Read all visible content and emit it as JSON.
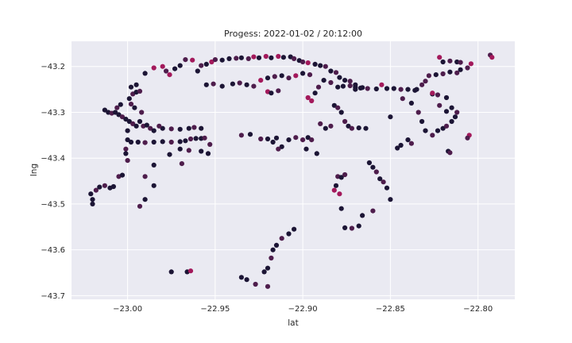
{
  "chart_data": {
    "type": "scatter",
    "title": "Progess: 2022-01-02 / 20:12:00",
    "xlabel": "lat",
    "ylabel": "lng",
    "xlim": [
      -23.032,
      -22.779
    ],
    "ylim": [
      -43.708,
      -43.145
    ],
    "xticks": [
      -23.0,
      -22.95,
      -22.9,
      -22.85,
      -22.8
    ],
    "xtick_labels": [
      "−23.00",
      "−22.95",
      "−22.90",
      "−22.85",
      "−22.80"
    ],
    "yticks": [
      -43.2,
      -43.3,
      -43.4,
      -43.5,
      -43.6,
      -43.7
    ],
    "ytick_labels": [
      "−43.2",
      "−43.3",
      "−43.4",
      "−43.5",
      "−43.6",
      "−43.7"
    ],
    "grid": true,
    "legend": "none",
    "colors": {
      "background": "#eaeaf2",
      "dark": "#1c1535",
      "mid": "#4e1d4c",
      "mid2": "#6e1f57",
      "bright": "#a3195b"
    },
    "points": [
      [
        -23.021,
        -43.478,
        0
      ],
      [
        -23.02,
        -43.49,
        0
      ],
      [
        -23.02,
        -43.5,
        0
      ],
      [
        -23.018,
        -43.47,
        1
      ],
      [
        -23.016,
        -43.463,
        0
      ],
      [
        -23.013,
        -43.46,
        1
      ],
      [
        -23.01,
        -43.465,
        0
      ],
      [
        -23.008,
        -43.462,
        0
      ],
      [
        -23.005,
        -43.44,
        1
      ],
      [
        -23.003,
        -43.437,
        0
      ],
      [
        -23.013,
        -43.295,
        0
      ],
      [
        -23.011,
        -43.3,
        0
      ],
      [
        -23.009,
        -43.302,
        1
      ],
      [
        -23.007,
        -43.3,
        0
      ],
      [
        -23.005,
        -43.305,
        0
      ],
      [
        -23.003,
        -43.31,
        1
      ],
      [
        -23.001,
        -43.315,
        0
      ],
      [
        -22.999,
        -43.32,
        0
      ],
      [
        -22.997,
        -43.325,
        1
      ],
      [
        -22.995,
        -43.33,
        0
      ],
      [
        -22.993,
        -43.32,
        0
      ],
      [
        -22.991,
        -43.33,
        1
      ],
      [
        -22.989,
        -43.328,
        0
      ],
      [
        -22.987,
        -43.335,
        1
      ],
      [
        -22.985,
        -43.34,
        0
      ],
      [
        -23.006,
        -43.29,
        1
      ],
      [
        -23.004,
        -43.283,
        0
      ],
      [
        -22.998,
        -43.282,
        1
      ],
      [
        -22.996,
        -43.29,
        0
      ],
      [
        -22.992,
        -43.3,
        1
      ],
      [
        -23.0,
        -43.34,
        0
      ],
      [
        -23.0,
        -43.36,
        0
      ],
      [
        -23.001,
        -43.38,
        1
      ],
      [
        -23.001,
        -43.39,
        0
      ],
      [
        -23.0,
        -43.405,
        1
      ],
      [
        -22.998,
        -43.365,
        0
      ],
      [
        -22.994,
        -43.365,
        0
      ],
      [
        -22.99,
        -43.366,
        1
      ],
      [
        -22.985,
        -43.365,
        0
      ],
      [
        -22.98,
        -43.364,
        0
      ],
      [
        -22.975,
        -43.365,
        1
      ],
      [
        -22.97,
        -43.364,
        0
      ],
      [
        -22.967,
        -43.362,
        0
      ],
      [
        -22.964,
        -43.358,
        1
      ],
      [
        -22.961,
        -43.357,
        0
      ],
      [
        -22.958,
        -43.357,
        0
      ],
      [
        -22.956,
        -43.356,
        1
      ],
      [
        -22.953,
        -43.37,
        1
      ],
      [
        -22.98,
        -43.335,
        0
      ],
      [
        -22.975,
        -43.336,
        1
      ],
      [
        -22.97,
        -43.337,
        0
      ],
      [
        -22.965,
        -43.335,
        0
      ],
      [
        -22.962,
        -43.333,
        1
      ],
      [
        -22.958,
        -43.335,
        0
      ],
      [
        -22.982,
        -43.33,
        1
      ],
      [
        -22.999,
        -43.27,
        0
      ],
      [
        -22.997,
        -43.26,
        1
      ],
      [
        -22.995,
        -43.256,
        0
      ],
      [
        -22.993,
        -43.254,
        1
      ],
      [
        -22.998,
        -43.245,
        0
      ],
      [
        -22.995,
        -43.24,
        0
      ],
      [
        -22.99,
        -43.215,
        0
      ],
      [
        -22.985,
        -43.203,
        2
      ],
      [
        -22.98,
        -43.2,
        2
      ],
      [
        -22.978,
        -43.21,
        1
      ],
      [
        -22.976,
        -43.218,
        2
      ],
      [
        -22.973,
        -43.205,
        0
      ],
      [
        -22.97,
        -43.198,
        0
      ],
      [
        -22.967,
        -43.185,
        1
      ],
      [
        -22.963,
        -43.186,
        2
      ],
      [
        -22.96,
        -43.21,
        0
      ],
      [
        -22.958,
        -43.198,
        1
      ],
      [
        -22.955,
        -43.195,
        0
      ],
      [
        -22.952,
        -43.19,
        2
      ],
      [
        -22.95,
        -43.185,
        1
      ],
      [
        -22.946,
        -43.186,
        0
      ],
      [
        -22.942,
        -43.183,
        0
      ],
      [
        -22.938,
        -43.182,
        1
      ],
      [
        -22.935,
        -43.181,
        0
      ],
      [
        -22.931,
        -43.183,
        1
      ],
      [
        -22.928,
        -43.179,
        2
      ],
      [
        -22.925,
        -43.181,
        0
      ],
      [
        -22.921,
        -43.178,
        2
      ],
      [
        -22.918,
        -43.181,
        0
      ],
      [
        -22.914,
        -43.178,
        2
      ],
      [
        -22.911,
        -43.18,
        0
      ],
      [
        -22.907,
        -43.179,
        0
      ],
      [
        -22.905,
        -43.183,
        1
      ],
      [
        -22.902,
        -43.187,
        0
      ],
      [
        -22.9,
        -43.19,
        1
      ],
      [
        -22.897,
        -43.192,
        2
      ],
      [
        -22.893,
        -43.195,
        0
      ],
      [
        -22.89,
        -43.198,
        0
      ],
      [
        -22.887,
        -43.2,
        1
      ],
      [
        -22.884,
        -43.21,
        0
      ],
      [
        -22.881,
        -43.213,
        1
      ],
      [
        -22.879,
        -43.224,
        0
      ],
      [
        -22.876,
        -43.23,
        0
      ],
      [
        -22.873,
        -43.232,
        1
      ],
      [
        -22.87,
        -43.24,
        0
      ],
      [
        -22.867,
        -43.247,
        0
      ],
      [
        -22.863,
        -43.248,
        1
      ],
      [
        -22.858,
        -43.249,
        0
      ],
      [
        -22.855,
        -43.24,
        2
      ],
      [
        -22.852,
        -43.248,
        0
      ],
      [
        -22.848,
        -43.248,
        0
      ],
      [
        -22.844,
        -43.25,
        1
      ],
      [
        -22.84,
        -43.25,
        0
      ],
      [
        -22.836,
        -43.252,
        0
      ],
      [
        -22.832,
        -43.24,
        1
      ],
      [
        -22.828,
        -43.22,
        1
      ],
      [
        -22.824,
        -43.218,
        0
      ],
      [
        -22.82,
        -43.216,
        1
      ],
      [
        -22.816,
        -43.212,
        0
      ],
      [
        -22.812,
        -43.214,
        1
      ],
      [
        -22.81,
        -43.207,
        0
      ],
      [
        -22.806,
        -43.203,
        1
      ],
      [
        -22.804,
        -43.194,
        2
      ],
      [
        -22.82,
        -43.19,
        0
      ],
      [
        -22.816,
        -43.188,
        1
      ],
      [
        -22.812,
        -43.19,
        0
      ],
      [
        -22.81,
        -43.191,
        1
      ],
      [
        -22.822,
        -43.18,
        2
      ],
      [
        -22.793,
        -43.175,
        1
      ],
      [
        -22.792,
        -43.18,
        2
      ],
      [
        -22.955,
        -43.24,
        0
      ],
      [
        -22.951,
        -43.238,
        1
      ],
      [
        -22.946,
        -43.243,
        0
      ],
      [
        -22.94,
        -43.238,
        0
      ],
      [
        -22.936,
        -43.236,
        1
      ],
      [
        -22.932,
        -43.24,
        0
      ],
      [
        -22.928,
        -43.243,
        1
      ],
      [
        -22.924,
        -43.23,
        2
      ],
      [
        -22.92,
        -43.225,
        0
      ],
      [
        -22.916,
        -43.222,
        1
      ],
      [
        -22.912,
        -43.22,
        0
      ],
      [
        -22.908,
        -43.225,
        1
      ],
      [
        -22.904,
        -43.22,
        2
      ],
      [
        -22.9,
        -43.215,
        0
      ],
      [
        -22.896,
        -43.218,
        1
      ],
      [
        -22.92,
        -43.255,
        2
      ],
      [
        -22.918,
        -43.258,
        0
      ],
      [
        -22.914,
        -43.253,
        1
      ],
      [
        -22.897,
        -43.268,
        2
      ],
      [
        -22.895,
        -43.275,
        2
      ],
      [
        -22.893,
        -43.258,
        0
      ],
      [
        -22.891,
        -43.245,
        1
      ],
      [
        -22.888,
        -43.23,
        0
      ],
      [
        -22.884,
        -43.235,
        1
      ],
      [
        -22.88,
        -43.245,
        0
      ],
      [
        -22.877,
        -43.243,
        0
      ],
      [
        -22.873,
        -43.242,
        1
      ],
      [
        -22.87,
        -43.245,
        0
      ],
      [
        -22.866,
        -43.246,
        0
      ],
      [
        -22.882,
        -43.285,
        0
      ],
      [
        -22.88,
        -43.29,
        1
      ],
      [
        -22.878,
        -43.3,
        0
      ],
      [
        -22.876,
        -43.32,
        1
      ],
      [
        -22.874,
        -43.33,
        0
      ],
      [
        -22.872,
        -43.335,
        1
      ],
      [
        -22.868,
        -43.334,
        0
      ],
      [
        -22.864,
        -43.335,
        0
      ],
      [
        -22.89,
        -43.325,
        1
      ],
      [
        -22.887,
        -43.335,
        0
      ],
      [
        -22.884,
        -43.33,
        1
      ],
      [
        -22.9,
        -43.36,
        1
      ],
      [
        -22.897,
        -43.355,
        0
      ],
      [
        -22.895,
        -43.36,
        1
      ],
      [
        -22.898,
        -43.38,
        0
      ],
      [
        -22.892,
        -43.39,
        0
      ],
      [
        -22.904,
        -43.355,
        1
      ],
      [
        -22.908,
        -43.36,
        0
      ],
      [
        -22.912,
        -43.375,
        0
      ],
      [
        -22.914,
        -43.38,
        1
      ],
      [
        -22.917,
        -43.365,
        0
      ],
      [
        -22.924,
        -43.358,
        1
      ],
      [
        -22.92,
        -43.358,
        0
      ],
      [
        -22.915,
        -43.356,
        0
      ],
      [
        -22.935,
        -43.35,
        1
      ],
      [
        -22.93,
        -43.348,
        0
      ],
      [
        -22.88,
        -43.44,
        1
      ],
      [
        -22.878,
        -43.442,
        0
      ],
      [
        -22.876,
        -43.436,
        1
      ],
      [
        -22.881,
        -43.46,
        0
      ],
      [
        -22.882,
        -43.47,
        2
      ],
      [
        -22.879,
        -43.478,
        2
      ],
      [
        -22.878,
        -43.51,
        0
      ],
      [
        -22.862,
        -43.41,
        0
      ],
      [
        -22.86,
        -43.42,
        0
      ],
      [
        -22.858,
        -43.43,
        1
      ],
      [
        -22.856,
        -43.445,
        0
      ],
      [
        -22.854,
        -43.452,
        1
      ],
      [
        -22.852,
        -43.465,
        0
      ],
      [
        -22.85,
        -43.49,
        0
      ],
      [
        -22.86,
        -43.515,
        1
      ],
      [
        -22.866,
        -43.525,
        0
      ],
      [
        -22.868,
        -43.548,
        0
      ],
      [
        -22.872,
        -43.553,
        1
      ],
      [
        -22.876,
        -43.552,
        0
      ],
      [
        -22.905,
        -43.555,
        0
      ],
      [
        -22.908,
        -43.565,
        0
      ],
      [
        -22.912,
        -43.575,
        1
      ],
      [
        -22.915,
        -43.59,
        0
      ],
      [
        -22.917,
        -43.6,
        0
      ],
      [
        -22.918,
        -43.618,
        1
      ],
      [
        -22.92,
        -43.64,
        0
      ],
      [
        -22.922,
        -43.648,
        0
      ],
      [
        -22.927,
        -43.675,
        1
      ],
      [
        -22.932,
        -43.665,
        0
      ],
      [
        -22.935,
        -43.66,
        0
      ],
      [
        -22.92,
        -43.68,
        1
      ],
      [
        -22.966,
        -43.648,
        0
      ],
      [
        -22.964,
        -43.646,
        2
      ],
      [
        -22.975,
        -43.648,
        0
      ],
      [
        -22.969,
        -43.412,
        1
      ],
      [
        -22.976,
        -43.392,
        0
      ],
      [
        -22.97,
        -43.38,
        0
      ],
      [
        -22.965,
        -43.383,
        1
      ],
      [
        -22.958,
        -43.385,
        0
      ],
      [
        -22.954,
        -43.39,
        0
      ],
      [
        -22.99,
        -43.44,
        1
      ],
      [
        -22.985,
        -43.46,
        0
      ],
      [
        -22.99,
        -43.49,
        0
      ],
      [
        -22.993,
        -43.505,
        1
      ],
      [
        -22.985,
        -43.415,
        0
      ],
      [
        -22.87,
        -43.25,
        0
      ],
      [
        -22.85,
        -43.31,
        0
      ],
      [
        -22.843,
        -43.27,
        1
      ],
      [
        -22.838,
        -43.28,
        0
      ],
      [
        -22.834,
        -43.3,
        1
      ],
      [
        -22.832,
        -43.32,
        0
      ],
      [
        -22.83,
        -43.34,
        0
      ],
      [
        -22.826,
        -43.35,
        1
      ],
      [
        -22.823,
        -43.34,
        0
      ],
      [
        -22.82,
        -43.335,
        0
      ],
      [
        -22.818,
        -43.33,
        1
      ],
      [
        -22.815,
        -43.32,
        0
      ],
      [
        -22.813,
        -43.31,
        0
      ],
      [
        -22.812,
        -43.3,
        1
      ],
      [
        -22.815,
        -43.29,
        0
      ],
      [
        -22.818,
        -43.298,
        0
      ],
      [
        -22.822,
        -43.285,
        1
      ],
      [
        -22.826,
        -43.26,
        0
      ],
      [
        -22.823,
        -43.262,
        1
      ],
      [
        -22.818,
        -43.268,
        0
      ],
      [
        -22.84,
        -43.36,
        0
      ],
      [
        -22.838,
        -43.368,
        1
      ],
      [
        -22.844,
        -43.372,
        0
      ],
      [
        -22.846,
        -43.378,
        0
      ],
      [
        -22.817,
        -43.385,
        0
      ],
      [
        -22.816,
        -43.388,
        1
      ],
      [
        -22.805,
        -43.35,
        2
      ],
      [
        -22.806,
        -43.356,
        1
      ],
      [
        -22.826,
        -43.258,
        2
      ],
      [
        -22.83,
        -43.232,
        1
      ],
      [
        -22.835,
        -43.25,
        0
      ]
    ]
  }
}
